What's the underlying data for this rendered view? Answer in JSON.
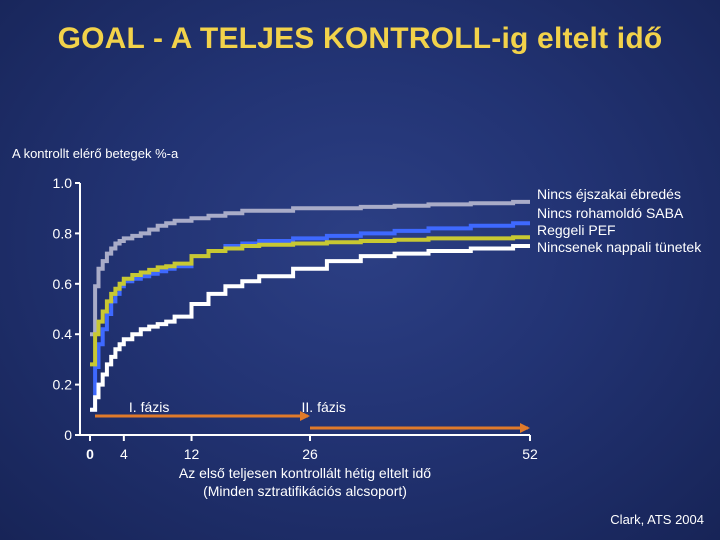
{
  "title": "GOAL - A TELJES KONTROLL-ig eltelt idő",
  "source": "Clark, ATS 2004",
  "chart_data": {
    "type": "line",
    "ylabel": "A kontrollt elérő betegek %-a",
    "xlabel_line1": "Az első teljesen kontrollált hétig eltelt idő",
    "xlabel_line2": "(Minden sztratifikációs alcsoport)",
    "xlim": [
      0,
      52
    ],
    "ylim": [
      0,
      1.0
    ],
    "y_ticks": [
      "0",
      "0.2",
      "0.4",
      "0.6",
      "0.8",
      "1.0"
    ],
    "y_tick_values": [
      0,
      0.2,
      0.4,
      0.6,
      0.8,
      1.0
    ],
    "x_ticks": [
      "0",
      "4",
      "12",
      "26",
      "52"
    ],
    "x_tick_values": [
      0,
      4,
      12,
      26,
      52
    ],
    "phases": [
      {
        "label": "I. fázis",
        "from": 0,
        "to": 26
      },
      {
        "label": "II. fázis",
        "from": 26,
        "to": 52
      }
    ],
    "series": [
      {
        "name": "Nincs éjszakai ébredés",
        "color": "#a9acc8",
        "x": [
          0,
          0.6,
          1,
          1.5,
          2,
          2.5,
          3,
          3.5,
          4,
          5,
          6,
          7,
          8,
          9,
          10,
          12,
          14,
          16,
          18,
          20,
          24,
          28,
          32,
          36,
          40,
          45,
          50,
          52
        ],
        "y": [
          0.4,
          0.59,
          0.66,
          0.69,
          0.72,
          0.74,
          0.76,
          0.77,
          0.78,
          0.79,
          0.8,
          0.815,
          0.83,
          0.84,
          0.85,
          0.86,
          0.87,
          0.88,
          0.89,
          0.89,
          0.9,
          0.9,
          0.905,
          0.91,
          0.915,
          0.92,
          0.925,
          0.925
        ]
      },
      {
        "name": "Nincs rohamoldó SABA",
        "color": "#3e69ff",
        "x": [
          0,
          0.6,
          1,
          1.5,
          2,
          2.5,
          3,
          3.5,
          4,
          5,
          6,
          7,
          8,
          9,
          10,
          12,
          14,
          16,
          18,
          20,
          24,
          28,
          32,
          36,
          40,
          45,
          50,
          52
        ],
        "y": [
          0.1,
          0.27,
          0.36,
          0.42,
          0.48,
          0.53,
          0.56,
          0.59,
          0.61,
          0.62,
          0.63,
          0.64,
          0.65,
          0.66,
          0.67,
          0.71,
          0.73,
          0.75,
          0.76,
          0.77,
          0.78,
          0.79,
          0.8,
          0.81,
          0.82,
          0.83,
          0.84,
          0.84
        ]
      },
      {
        "name": "Reggeli PEF",
        "color": "#c8c832",
        "x": [
          0,
          0.6,
          1,
          1.5,
          2,
          2.5,
          3,
          3.5,
          4,
          5,
          6,
          7,
          8,
          9,
          10,
          12,
          14,
          16,
          18,
          20,
          24,
          28,
          32,
          36,
          40,
          45,
          50,
          52
        ],
        "y": [
          0.28,
          0.4,
          0.45,
          0.49,
          0.53,
          0.56,
          0.58,
          0.6,
          0.62,
          0.635,
          0.645,
          0.655,
          0.665,
          0.67,
          0.68,
          0.71,
          0.73,
          0.74,
          0.75,
          0.755,
          0.76,
          0.765,
          0.77,
          0.775,
          0.78,
          0.78,
          0.785,
          0.785
        ]
      },
      {
        "name": "Nincsenek nappali tünetek",
        "color": "#ffffff",
        "x": [
          0,
          0.6,
          1,
          1.5,
          2,
          2.5,
          3,
          3.5,
          4,
          5,
          6,
          7,
          8,
          9,
          10,
          12,
          14,
          16,
          18,
          20,
          24,
          28,
          32,
          36,
          40,
          45,
          50,
          52
        ],
        "y": [
          0.1,
          0.15,
          0.2,
          0.24,
          0.28,
          0.31,
          0.34,
          0.36,
          0.38,
          0.4,
          0.42,
          0.43,
          0.44,
          0.45,
          0.47,
          0.52,
          0.56,
          0.59,
          0.61,
          0.63,
          0.66,
          0.69,
          0.71,
          0.72,
          0.73,
          0.74,
          0.75,
          0.75
        ]
      }
    ],
    "grid": false,
    "legend_placement": "right"
  }
}
